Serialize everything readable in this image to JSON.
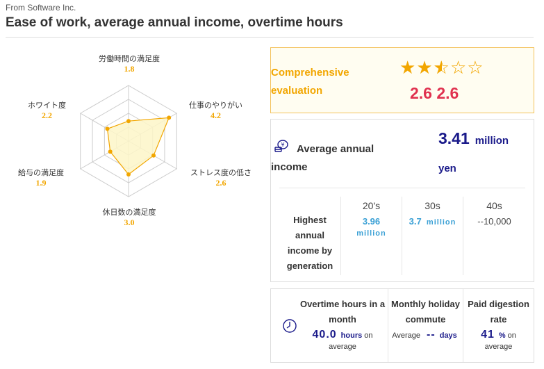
{
  "header": {
    "company": "From Software Inc.",
    "title": "Ease of work, average annual income, overtime hours"
  },
  "radar": {
    "max": 5,
    "axes": [
      {
        "label": "労働時間の満足度",
        "value": 1.8,
        "display": "1.8"
      },
      {
        "label": "仕事のやりがい",
        "value": 4.2,
        "display": "4.2"
      },
      {
        "label": "ストレス度の低さ",
        "value": 2.6,
        "display": "2.6"
      },
      {
        "label": "休日数の満足度",
        "value": 3.0,
        "display": "3.0"
      },
      {
        "label": "給与の満足度",
        "value": 1.9,
        "display": "1.9"
      },
      {
        "label": "ホワイト度",
        "value": 2.2,
        "display": "2.2"
      }
    ],
    "colors": {
      "stroke": "#f2a600",
      "fill": "#fdf6c8",
      "grid": "#cccccc"
    }
  },
  "evaluation": {
    "label": "Comprehensive evaluation",
    "rating": 2.6,
    "stars_max": 5,
    "score_text": "2.6 2.6"
  },
  "income": {
    "label": "Average annual income",
    "icon": "coin-stack-icon",
    "value": "3.41",
    "unit_a": "million",
    "unit_b": "yen",
    "generation_label": "Highest annual income by generation",
    "generations": [
      {
        "head": "20's",
        "value": "3.96",
        "unit": "million"
      },
      {
        "head": "30s",
        "value": "3.7",
        "unit": "million"
      },
      {
        "head": "40s",
        "plain": "--10,000"
      }
    ]
  },
  "overtime": {
    "icon": "clock-icon",
    "items": [
      {
        "head": "Overtime hours in a month",
        "value": "40.0",
        "unit": "hours",
        "suffix": "on",
        "sub": "average"
      },
      {
        "head": "Monthly holiday commute",
        "prefix": "Average",
        "value": "--",
        "unit": "days"
      },
      {
        "head": "Paid digestion rate",
        "value": "41",
        "unit": "%",
        "suffix": "on",
        "sub": "average"
      }
    ]
  },
  "colors": {
    "accent": "#f2a600",
    "score": "#e0314f",
    "navy": "#1a1a8a",
    "blue": "#3aa0d5"
  }
}
